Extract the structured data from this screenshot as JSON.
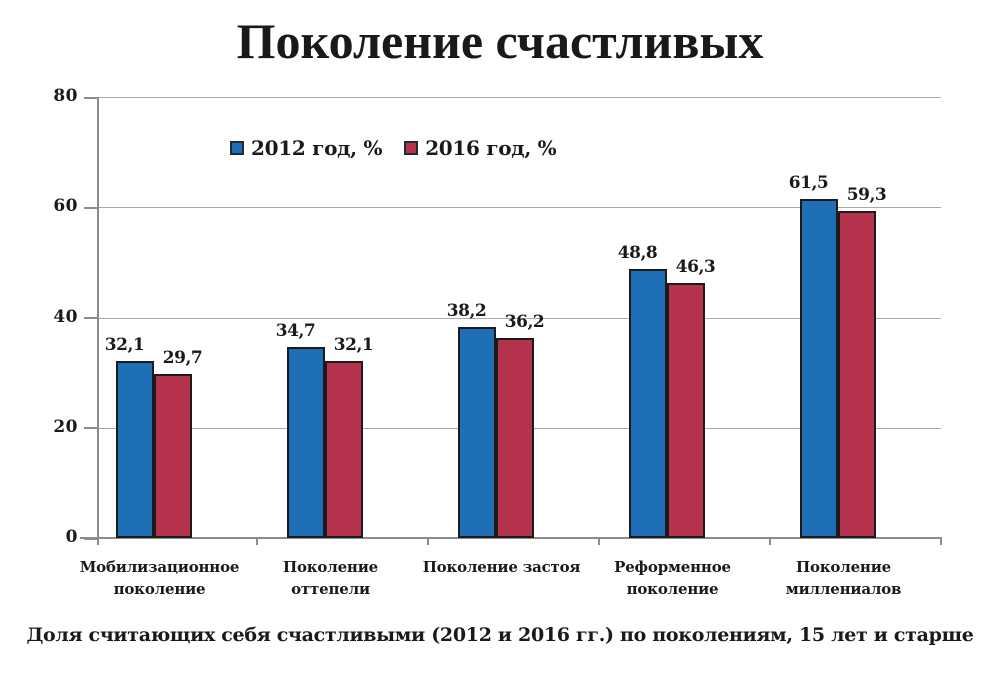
{
  "title": "Поколение счастливых",
  "caption": "Доля считающих себя счастливыми (2012 и 2016 гг.) по поколениям, 15 лет и старше",
  "colors": {
    "series_2012": "#1e6fb5",
    "series_2016": "#b5334c",
    "bar_border": "#1b1b1b",
    "gridline": "#a9a9a9",
    "axis": "#8c8c8c",
    "text": "#1a1a1a"
  },
  "chart_data": {
    "type": "bar",
    "title": "Поколение счастливых",
    "categories": [
      "Мобилизационное поколение",
      "Поколение оттепели",
      "Поколение застоя",
      "Реформенное поколение",
      "Поколение миллениалов"
    ],
    "category_label_lines": [
      [
        "Мобилизационное",
        "поколение"
      ],
      [
        "Поколение",
        "оттепели"
      ],
      [
        "Поколение застоя"
      ],
      [
        "Реформенное",
        "поколение"
      ],
      [
        "Поколение",
        "миллениалов"
      ]
    ],
    "series": [
      {
        "name": "2012 год, %",
        "color": "#1e6fb5",
        "values": [
          32.1,
          34.7,
          38.2,
          48.8,
          61.5
        ]
      },
      {
        "name": "2016 год, %",
        "color": "#b5334c",
        "values": [
          29.7,
          32.1,
          36.2,
          46.3,
          59.3
        ]
      }
    ],
    "value_labels": [
      [
        "32,1",
        "34,7",
        "38,2",
        "48,8",
        "61,5"
      ],
      [
        "29,7",
        "32,1",
        "36,2",
        "46,3",
        "59,3"
      ]
    ],
    "xlabel": "",
    "ylabel": "",
    "ylim": [
      0,
      80
    ],
    "yticks": [
      0,
      20,
      40,
      60,
      80
    ],
    "grid": true,
    "legend_position": "top-left-inside"
  }
}
